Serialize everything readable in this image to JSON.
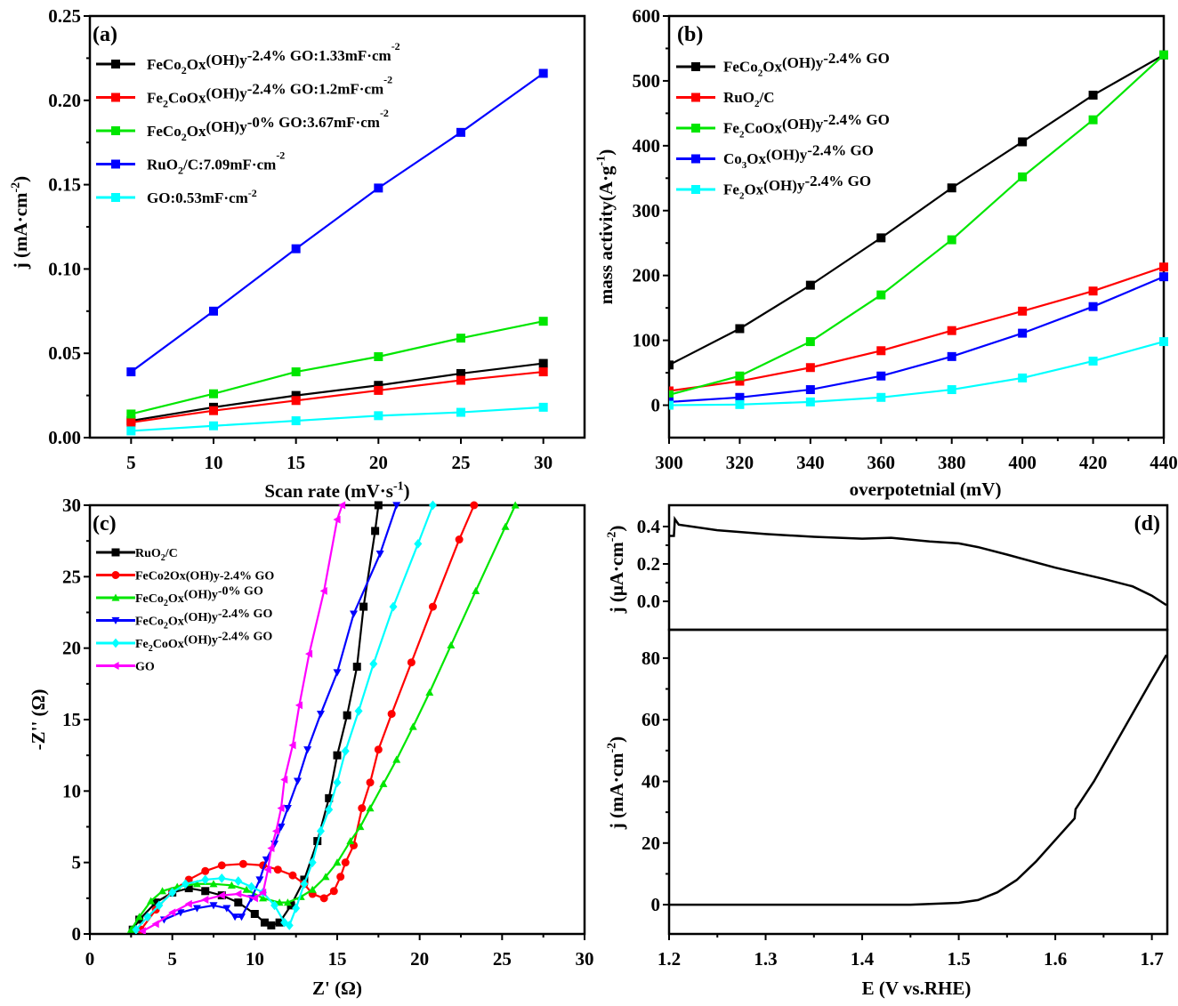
{
  "chart_data": [
    {
      "panel": "(a)",
      "type": "line",
      "xlabel": "Scan rate (mV·s^{-1})",
      "ylabel": "j (mA·cm^{-2})",
      "xlim": [
        2.5,
        32.5
      ],
      "ylim": [
        0,
        0.25
      ],
      "xticks": [
        5,
        10,
        15,
        20,
        25,
        30
      ],
      "xtick_labels": [
        "5",
        "10",
        "15",
        "20",
        "25",
        "30"
      ],
      "yticks": [
        0,
        0.05,
        0.1,
        0.15,
        0.2,
        0.25
      ],
      "ytick_labels": [
        "0.00",
        "0.05",
        "0.10",
        "0.15",
        "0.20",
        "0.25"
      ],
      "legend_position": "top-left",
      "x": [
        5,
        10,
        15,
        20,
        25,
        30
      ],
      "series": [
        {
          "name": "FeCo_{2}O_{x}(OH)_{y}-2.4% GO:1.33mF·cm^{-2}",
          "color": "#000000",
          "marker": "square",
          "values": [
            0.01,
            0.018,
            0.025,
            0.031,
            0.038,
            0.044
          ]
        },
        {
          "name": "Fe_{2}CoO_{x}(OH)_{y}-2.4% GO:1.2mF·cm^{-2}",
          "color": "#ff0000",
          "marker": "square",
          "values": [
            0.009,
            0.016,
            0.022,
            0.028,
            0.034,
            0.039
          ]
        },
        {
          "name": "FeCo_{2}O_{x}(OH)_{y}-0% GO:3.67mF·cm^{-2}",
          "color": "#00e600",
          "marker": "square",
          "values": [
            0.014,
            0.026,
            0.039,
            0.048,
            0.059,
            0.069
          ]
        },
        {
          "name": "RuO_{2}/C:7.09mF·cm^{-2}",
          "color": "#0000ff",
          "marker": "square",
          "values": [
            0.039,
            0.075,
            0.112,
            0.148,
            0.181,
            0.216
          ]
        },
        {
          "name": "GO:0.53mF·cm^{-2}",
          "color": "#00ffff",
          "marker": "square",
          "values": [
            0.004,
            0.007,
            0.01,
            0.013,
            0.015,
            0.018
          ]
        }
      ]
    },
    {
      "panel": "(b)",
      "type": "line",
      "xlabel": "overpotetnial (mV)",
      "ylabel": "mass activity(A·g^{-1})",
      "xlim": [
        300,
        440
      ],
      "ylim": [
        -50,
        600
      ],
      "xticks": [
        300,
        320,
        340,
        360,
        380,
        400,
        420,
        440
      ],
      "xtick_labels": [
        "300",
        "320",
        "340",
        "360",
        "380",
        "400",
        "420",
        "440"
      ],
      "yticks": [
        0,
        100,
        200,
        300,
        400,
        500,
        600
      ],
      "ytick_labels": [
        "0",
        "100",
        "200",
        "300",
        "400",
        "500",
        "600"
      ],
      "legend_position": "top-left",
      "x": [
        300,
        320,
        340,
        360,
        380,
        400,
        420,
        440
      ],
      "series": [
        {
          "name": "FeCo_{2}O_{x}(OH)_{y}-2.4% GO",
          "color": "#000000",
          "marker": "square",
          "values": [
            62,
            118,
            185,
            258,
            335,
            406,
            478,
            540
          ]
        },
        {
          "name": "RuO_{2}/C",
          "color": "#ff0000",
          "marker": "square",
          "values": [
            22,
            37,
            58,
            84,
            115,
            145,
            176,
            213
          ]
        },
        {
          "name": "Fe_{2}CoO_{x}(OH)_{y}-2.4% GO",
          "color": "#00e600",
          "marker": "square",
          "values": [
            16,
            45,
            98,
            170,
            255,
            352,
            440,
            540
          ]
        },
        {
          "name": "Co_{3}O_{x}(OH)_{y}-2.4% GO",
          "color": "#0000ff",
          "marker": "square",
          "values": [
            5,
            12,
            24,
            45,
            75,
            111,
            152,
            198
          ]
        },
        {
          "name": "Fe_{2}O_{x}(OH)_{y}-2.4% GO",
          "color": "#00ffff",
          "marker": "square",
          "values": [
            0,
            1,
            5,
            12,
            24,
            42,
            68,
            98
          ]
        }
      ]
    },
    {
      "panel": "(c)",
      "type": "line",
      "xlabel": "Z' (Ω)",
      "ylabel": "-Z'' (Ω)",
      "xlim": [
        0,
        30
      ],
      "ylim": [
        0,
        30
      ],
      "xticks": [
        0,
        5,
        10,
        15,
        20,
        25,
        30
      ],
      "xtick_labels": [
        "0",
        "5",
        "10",
        "15",
        "20",
        "25",
        "30"
      ],
      "yticks": [
        0,
        5,
        10,
        15,
        20,
        25,
        30
      ],
      "ytick_labels": [
        "0",
        "5",
        "10",
        "15",
        "20",
        "25",
        "30"
      ],
      "legend_position": "top-left",
      "series": [
        {
          "name": "RuO_{2}/C",
          "color": "#000000",
          "marker": "square",
          "points": [
            [
              2.6,
              0.3
            ],
            [
              3,
              1.0
            ],
            [
              4,
              2.2
            ],
            [
              5,
              2.9
            ],
            [
              6,
              3.2
            ],
            [
              7,
              3.0
            ],
            [
              8,
              2.7
            ],
            [
              9,
              2.2
            ],
            [
              10,
              1.4
            ],
            [
              10.6,
              0.8
            ],
            [
              11,
              0.6
            ],
            [
              11.5,
              0.8
            ],
            [
              12.2,
              2.0
            ],
            [
              13,
              3.8
            ],
            [
              13.8,
              6.5
            ],
            [
              14.5,
              9.5
            ],
            [
              15,
              12.5
            ],
            [
              15.6,
              15.3
            ],
            [
              16.2,
              18.7
            ],
            [
              16.6,
              22.9
            ],
            [
              17.3,
              28.2
            ],
            [
              17.5,
              30
            ]
          ]
        },
        {
          "name": "FeCo2Ox(OH)y-2.4% GO",
          "color": "#ff0000",
          "marker": "circle",
          "points": [
            [
              3.1,
              0.3
            ],
            [
              4,
              1.7
            ],
            [
              5,
              3
            ],
            [
              6,
              3.8
            ],
            [
              7,
              4.4
            ],
            [
              8,
              4.8
            ],
            [
              9.3,
              4.9
            ],
            [
              10.5,
              4.8
            ],
            [
              11.4,
              4.5
            ],
            [
              12.3,
              4.1
            ],
            [
              13,
              3.5
            ],
            [
              13.5,
              2.8
            ],
            [
              14.2,
              2.5
            ],
            [
              14.8,
              3
            ],
            [
              15.2,
              4
            ],
            [
              15.5,
              5
            ],
            [
              16,
              6.2
            ],
            [
              16.5,
              8.8
            ],
            [
              17,
              10.6
            ],
            [
              17.5,
              12.9
            ],
            [
              18.3,
              15.4
            ],
            [
              19.5,
              19
            ],
            [
              20.8,
              22.9
            ],
            [
              22.4,
              27.6
            ],
            [
              23.3,
              30
            ]
          ]
        },
        {
          "name": "FeCo_{2}O_{x}(OH)_{y}-0% GO",
          "color": "#00e600",
          "marker": "triangle-up",
          "points": [
            [
              2.5,
              0.3
            ],
            [
              3,
              1.2
            ],
            [
              3.7,
              2.3
            ],
            [
              4.4,
              3
            ],
            [
              5.3,
              3.3
            ],
            [
              6.5,
              3.5
            ],
            [
              7.5,
              3.5
            ],
            [
              8.6,
              3.4
            ],
            [
              9.5,
              3.1
            ],
            [
              10.5,
              2.5
            ],
            [
              11.5,
              2.2
            ],
            [
              12,
              2.2
            ],
            [
              12.8,
              2.6
            ],
            [
              13.5,
              3.1
            ],
            [
              14.3,
              4
            ],
            [
              15,
              5
            ],
            [
              15.8,
              6.5
            ],
            [
              16.4,
              7.5
            ],
            [
              17,
              8.8
            ],
            [
              17.8,
              10.5
            ],
            [
              18.6,
              12.2
            ],
            [
              19.6,
              14.5
            ],
            [
              20.6,
              16.9
            ],
            [
              21.9,
              20.2
            ],
            [
              23.4,
              24
            ],
            [
              25.2,
              28.5
            ],
            [
              25.8,
              30
            ]
          ]
        },
        {
          "name": "FeCo_{2}O_{x}(OH)_{y}-2.4% GO",
          "color": "#0000ff",
          "marker": "triangle-down",
          "points": [
            [
              4.5,
              1.0
            ],
            [
              5.5,
              1.5
            ],
            [
              6.5,
              1.8
            ],
            [
              7.5,
              2
            ],
            [
              8.3,
              1.8
            ],
            [
              8.8,
              1.2
            ],
            [
              9.2,
              1.2
            ],
            [
              9.8,
              2.5
            ],
            [
              10.3,
              3.8
            ],
            [
              10.7,
              5.2
            ],
            [
              11.2,
              6.3
            ],
            [
              11.6,
              7.5
            ],
            [
              12,
              8.8
            ],
            [
              12.6,
              10.7
            ],
            [
              13.2,
              12.9
            ],
            [
              14,
              15.4
            ],
            [
              15,
              18.3
            ],
            [
              16,
              22.4
            ],
            [
              17.6,
              26.6
            ],
            [
              18.6,
              30
            ]
          ]
        },
        {
          "name": "Fe_{2}CoO_{x}(OH)_{y}-2.4% GO",
          "color": "#00ffff",
          "marker": "diamond",
          "points": [
            [
              2.8,
              0.3
            ],
            [
              3.5,
              1.2
            ],
            [
              4.2,
              2.0
            ],
            [
              5,
              2.9
            ],
            [
              5.8,
              3.5
            ],
            [
              7,
              3.8
            ],
            [
              8,
              3.9
            ],
            [
              9,
              3.7
            ],
            [
              9.8,
              3.3
            ],
            [
              10.5,
              2.9
            ],
            [
              11.2,
              2.0
            ],
            [
              11.8,
              0.8
            ],
            [
              12.1,
              0.6
            ],
            [
              12.5,
              1.8
            ],
            [
              13,
              3.5
            ],
            [
              13.5,
              5
            ],
            [
              14,
              7.2
            ],
            [
              14.5,
              8.7
            ],
            [
              15,
              10.6
            ],
            [
              15.5,
              12.8
            ],
            [
              16.3,
              15.6
            ],
            [
              17.2,
              18.9
            ],
            [
              18.4,
              22.9
            ],
            [
              19.9,
              27.3
            ],
            [
              20.8,
              30
            ]
          ]
        },
        {
          "name": "GO",
          "color": "#ff00ff",
          "marker": "triangle-left",
          "points": [
            [
              3.2,
              0.2
            ],
            [
              4,
              0.7
            ],
            [
              5,
              1.5
            ],
            [
              6,
              2.1
            ],
            [
              7,
              2.4
            ],
            [
              8,
              2.7
            ],
            [
              9,
              2.8
            ],
            [
              10,
              2.5
            ],
            [
              10.5,
              2.9
            ],
            [
              10.8,
              4.5
            ],
            [
              11,
              6
            ],
            [
              11.3,
              7.2
            ],
            [
              11.6,
              8.8
            ],
            [
              11.8,
              10.8
            ],
            [
              12.3,
              13.2
            ],
            [
              12.7,
              16
            ],
            [
              13.3,
              19.6
            ],
            [
              14.2,
              24
            ],
            [
              15,
              29
            ],
            [
              15.3,
              30
            ]
          ]
        }
      ]
    },
    {
      "panel": "(d)",
      "type": "line",
      "xlabel": "E (V vs.RHE)",
      "xlim": [
        1.2,
        1.716
      ],
      "xticks": [
        1.2,
        1.3,
        1.4,
        1.5,
        1.6,
        1.7
      ],
      "xtick_labels": [
        "1.2",
        "1.3",
        "1.4",
        "1.5",
        "1.6",
        "1.7"
      ],
      "top": {
        "ylabel": "j (μA·cm^{-2})",
        "ylim": [
          -0.152,
          0.514
        ],
        "yticks": [
          0,
          0.2,
          0.4
        ],
        "ytick_labels": [
          "0.0",
          "0.2",
          "0.4"
        ],
        "color": "#000000",
        "points": [
          [
            1.2,
            0.35
          ],
          [
            1.205,
            0.35
          ],
          [
            1.206,
            0.44
          ],
          [
            1.21,
            0.41
          ],
          [
            1.25,
            0.38
          ],
          [
            1.3,
            0.36
          ],
          [
            1.35,
            0.345
          ],
          [
            1.4,
            0.335
          ],
          [
            1.43,
            0.34
          ],
          [
            1.47,
            0.32
          ],
          [
            1.5,
            0.31
          ],
          [
            1.52,
            0.29
          ],
          [
            1.55,
            0.25
          ],
          [
            1.6,
            0.18
          ],
          [
            1.65,
            0.12
          ],
          [
            1.68,
            0.08
          ],
          [
            1.7,
            0.03
          ],
          [
            1.715,
            -0.02
          ]
        ]
      },
      "bottom": {
        "ylabel": "j (mA·cm^{-2})",
        "ylim": [
          -9.5,
          89.2
        ],
        "yticks": [
          0,
          20,
          40,
          60,
          80
        ],
        "ytick_labels": [
          "0",
          "20",
          "40",
          "60",
          "80"
        ],
        "color": "#000000",
        "points": [
          [
            1.2,
            0
          ],
          [
            1.45,
            0
          ],
          [
            1.5,
            0.6
          ],
          [
            1.52,
            1.5
          ],
          [
            1.54,
            4
          ],
          [
            1.56,
            8
          ],
          [
            1.58,
            14
          ],
          [
            1.6,
            21
          ],
          [
            1.62,
            28
          ],
          [
            1.621,
            31
          ],
          [
            1.64,
            40
          ],
          [
            1.66,
            51
          ],
          [
            1.68,
            62
          ],
          [
            1.7,
            73
          ],
          [
            1.715,
            81
          ]
        ]
      }
    }
  ]
}
